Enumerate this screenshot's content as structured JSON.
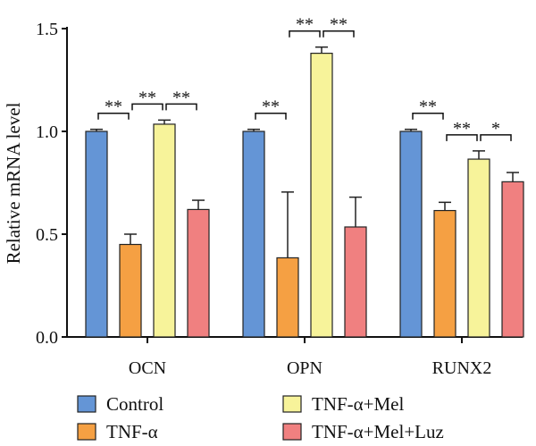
{
  "chart_data": {
    "type": "bar",
    "ylabel": "Relative mRNA level",
    "ylim": [
      0,
      1.5
    ],
    "yticks": [
      "0.0",
      "0.5",
      "1.0",
      "1.5"
    ],
    "categories": [
      "OCN",
      "OPN",
      "RUNX2"
    ],
    "series": [
      {
        "name": "Control",
        "values": [
          1.0,
          1.0,
          1.0
        ],
        "errors": [
          0.01,
          0.01,
          0.01
        ],
        "color": "#6495d6"
      },
      {
        "name": "TNF-α",
        "values": [
          0.45,
          0.385,
          0.615
        ],
        "errors": [
          0.05,
          0.32,
          0.04
        ],
        "color": "#f5a043"
      },
      {
        "name": "TNF-α+Mel",
        "values": [
          1.035,
          1.38,
          0.865
        ],
        "errors": [
          0.02,
          0.03,
          0.04
        ],
        "color": "#f7f39a"
      },
      {
        "name": "TNF-α+Mel+Luz",
        "values": [
          0.62,
          0.535,
          0.755
        ],
        "errors": [
          0.045,
          0.145,
          0.045
        ],
        "color": "#f08080"
      }
    ],
    "significance": [
      {
        "category": 0,
        "from": 0,
        "to": 1,
        "label": "**"
      },
      {
        "category": 0,
        "from": 1,
        "to": 2,
        "label": "**"
      },
      {
        "category": 0,
        "from": 2,
        "to": 3,
        "label": "**"
      },
      {
        "category": 1,
        "from": 0,
        "to": 1,
        "label": "**"
      },
      {
        "category": 1,
        "from": 1,
        "to": 2,
        "label": "**"
      },
      {
        "category": 1,
        "from": 2,
        "to": 3,
        "label": "**"
      },
      {
        "category": 2,
        "from": 0,
        "to": 1,
        "label": "**"
      },
      {
        "category": 2,
        "from": 1,
        "to": 2,
        "label": "**"
      },
      {
        "category": 2,
        "from": 2,
        "to": 3,
        "label": "*"
      }
    ],
    "legend_position": "bottom"
  }
}
